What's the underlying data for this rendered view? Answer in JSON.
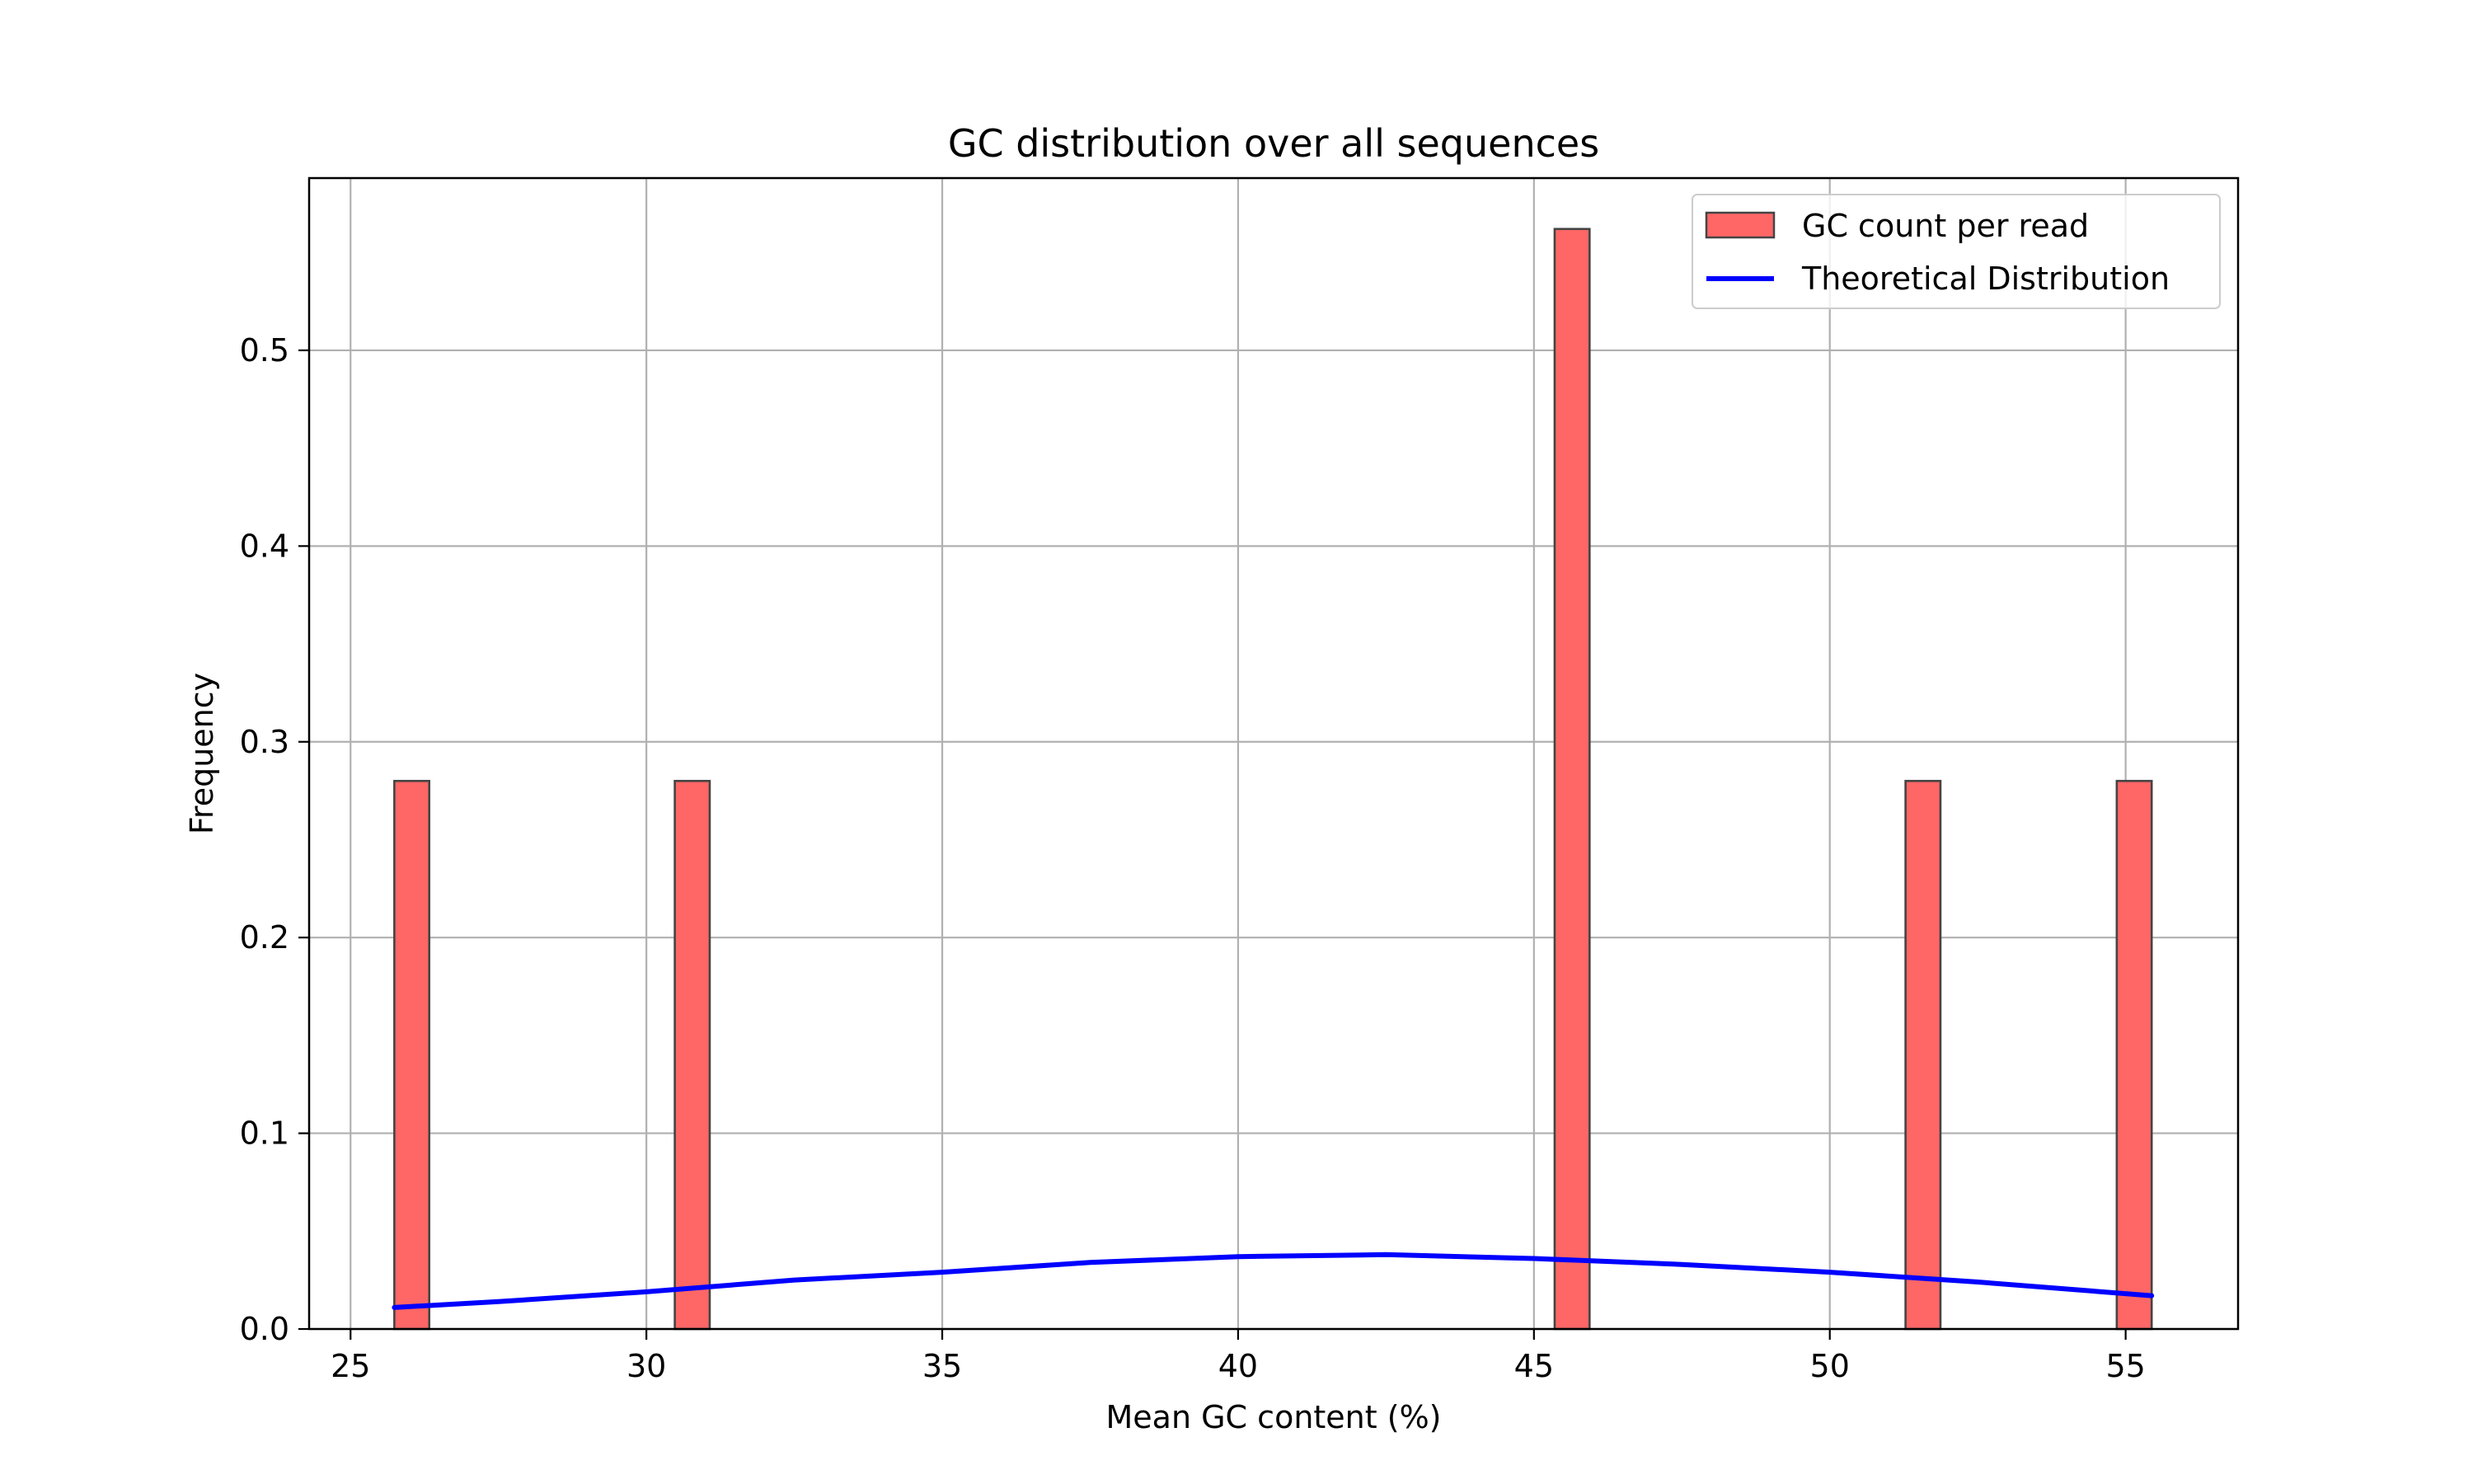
{
  "chart_data": {
    "type": "bar",
    "title": "GC distribution over all sequences",
    "xlabel": "Mean GC content (%)",
    "ylabel": "Frequency",
    "xlim": [
      24.3,
      56.9
    ],
    "ylim": [
      0,
      0.588
    ],
    "xticks": [
      25,
      30,
      35,
      40,
      45,
      50,
      55
    ],
    "yticks": [
      0.0,
      0.1,
      0.2,
      0.3,
      0.4,
      0.5
    ],
    "grid": true,
    "legend_position": "top-right",
    "colors": {
      "bars": "#ff6666",
      "bar_edge": "#444444",
      "line": "#0000ff",
      "grid": "#b0b0b0"
    },
    "series": [
      {
        "name": "GC count per read",
        "type": "bar",
        "bins": [
          {
            "x0": 25.74,
            "x1": 26.33,
            "value": 0.28
          },
          {
            "x0": 30.48,
            "x1": 31.07,
            "value": 0.28
          },
          {
            "x0": 45.35,
            "x1": 45.94,
            "value": 0.562
          },
          {
            "x0": 51.28,
            "x1": 51.87,
            "value": 0.28
          },
          {
            "x0": 54.85,
            "x1": 55.44,
            "value": 0.28
          }
        ]
      },
      {
        "name": "Theoretical Distribution",
        "type": "line",
        "x": [
          25.74,
          27.5,
          30,
          32.5,
          35,
          37.5,
          40,
          42.5,
          45,
          47.5,
          50,
          52.5,
          55.44
        ],
        "y": [
          0.011,
          0.014,
          0.019,
          0.025,
          0.029,
          0.034,
          0.037,
          0.038,
          0.036,
          0.033,
          0.029,
          0.024,
          0.017
        ]
      }
    ]
  }
}
